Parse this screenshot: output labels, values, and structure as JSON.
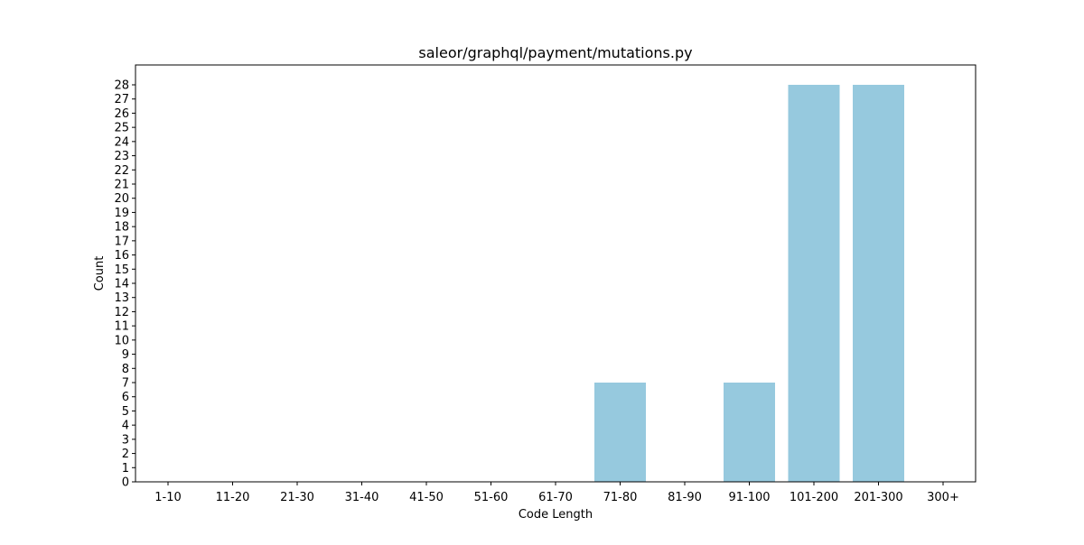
{
  "chart_data": {
    "type": "bar",
    "title": "saleor/graphql/payment/mutations.py",
    "xlabel": "Code Length",
    "ylabel": "Count",
    "categories": [
      "1-10",
      "11-20",
      "21-30",
      "31-40",
      "41-50",
      "51-60",
      "61-70",
      "71-80",
      "81-90",
      "91-100",
      "101-200",
      "201-300",
      "300+"
    ],
    "values": [
      0,
      0,
      0,
      0,
      0,
      0,
      0,
      7,
      0,
      7,
      28,
      28,
      0
    ],
    "ylim": [
      0,
      29.4
    ],
    "yticks": [
      0,
      1,
      2,
      3,
      4,
      5,
      6,
      7,
      8,
      9,
      10,
      11,
      12,
      13,
      14,
      15,
      16,
      17,
      18,
      19,
      20,
      21,
      22,
      23,
      24,
      25,
      26,
      27,
      28
    ],
    "grid": false,
    "legend": "none",
    "bar_color": "#96c9de"
  }
}
